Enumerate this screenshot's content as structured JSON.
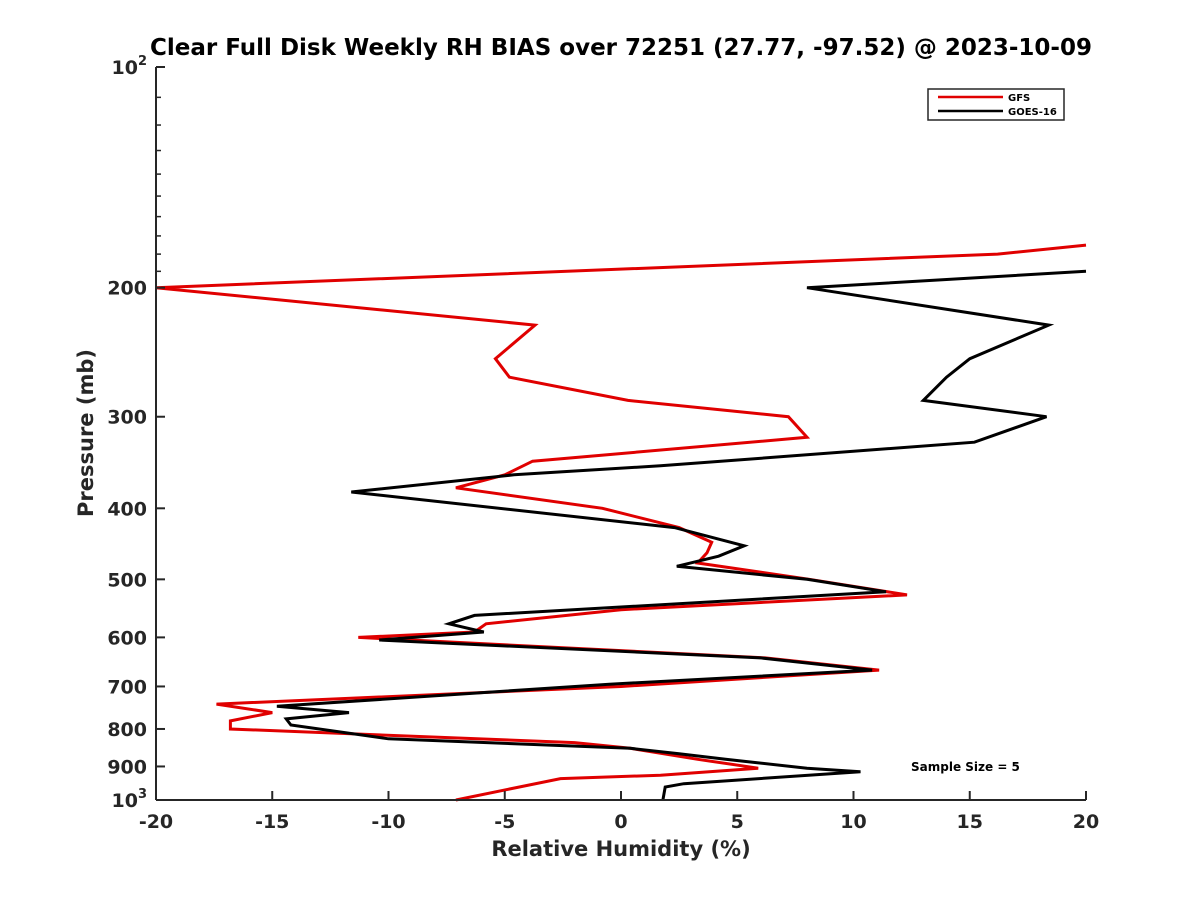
{
  "chart_data": {
    "type": "line",
    "title": "Clear Full Disk Weekly RH BIAS over 72251 (27.77, -97.52) @ 2023-10-09",
    "xlabel": "Relative Humidity (%)",
    "ylabel": "Pressure (mb)",
    "xlim": [
      -20,
      20
    ],
    "ylim": [
      100,
      1000
    ],
    "y_scale": "log",
    "y_reversed": true,
    "x_ticks": [
      "-20",
      "-15",
      "-10",
      "-5",
      "0",
      "5",
      "10",
      "15",
      "20"
    ],
    "y_ticks": [
      {
        "value": 100,
        "label": "10",
        "sup": "2"
      },
      {
        "value": 200,
        "label": "200",
        "sup": ""
      },
      {
        "value": 300,
        "label": "300",
        "sup": ""
      },
      {
        "value": 400,
        "label": "400",
        "sup": ""
      },
      {
        "value": 500,
        "label": "500",
        "sup": ""
      },
      {
        "value": 600,
        "label": "600",
        "sup": ""
      },
      {
        "value": 700,
        "label": "700",
        "sup": ""
      },
      {
        "value": 800,
        "label": "800",
        "sup": ""
      },
      {
        "value": 900,
        "label": "900",
        "sup": ""
      },
      {
        "value": 1000,
        "label": "10",
        "sup": "3"
      }
    ],
    "grid": false,
    "legend_position": "top-right",
    "annotation": "Sample Size = 5",
    "series": [
      {
        "name": "GFS",
        "color": "#e00000",
        "points": [
          [
            20.0,
            175
          ],
          [
            16.2,
            180
          ],
          [
            -20.0,
            200
          ],
          [
            -3.7,
            225
          ],
          [
            -5.4,
            250
          ],
          [
            -4.8,
            265
          ],
          [
            0.3,
            285
          ],
          [
            7.2,
            300
          ],
          [
            8.0,
            320
          ],
          [
            -3.8,
            345
          ],
          [
            -5.0,
            360
          ],
          [
            -7.1,
            375
          ],
          [
            -0.8,
            400
          ],
          [
            2.5,
            425
          ],
          [
            3.9,
            445
          ],
          [
            3.7,
            460
          ],
          [
            3.3,
            475
          ],
          [
            8.1,
            500
          ],
          [
            12.3,
            525
          ],
          [
            0.0,
            550
          ],
          [
            -5.8,
            575
          ],
          [
            -6.3,
            590
          ],
          [
            -11.3,
            600
          ],
          [
            6.2,
            640
          ],
          [
            11.1,
            665
          ],
          [
            0.0,
            700
          ],
          [
            -17.4,
            740
          ],
          [
            -15.0,
            760
          ],
          [
            -16.8,
            780
          ],
          [
            -16.8,
            800
          ],
          [
            -2.0,
            835
          ],
          [
            0.4,
            850
          ],
          [
            3.3,
            880
          ],
          [
            5.9,
            905
          ],
          [
            1.7,
            925
          ],
          [
            -2.6,
            935
          ],
          [
            -7.1,
            1000
          ]
        ]
      },
      {
        "name": "GOES-16",
        "color": "#000000",
        "points": [
          [
            20.0,
            190
          ],
          [
            8.0,
            200
          ],
          [
            18.4,
            225
          ],
          [
            15.0,
            250
          ],
          [
            14.0,
            265
          ],
          [
            13.0,
            285
          ],
          [
            18.3,
            300
          ],
          [
            15.2,
            325
          ],
          [
            1.7,
            350
          ],
          [
            -4.6,
            360
          ],
          [
            -11.6,
            380
          ],
          [
            2.3,
            425
          ],
          [
            5.3,
            450
          ],
          [
            4.2,
            465
          ],
          [
            2.4,
            480
          ],
          [
            8.0,
            500
          ],
          [
            11.4,
            520
          ],
          [
            -6.3,
            560
          ],
          [
            -7.4,
            575
          ],
          [
            -5.9,
            590
          ],
          [
            -10.4,
            605
          ],
          [
            6.0,
            640
          ],
          [
            10.8,
            665
          ],
          [
            -0.5,
            695
          ],
          [
            -14.8,
            745
          ],
          [
            -11.7,
            760
          ],
          [
            -14.4,
            775
          ],
          [
            -14.2,
            790
          ],
          [
            -10.0,
            825
          ],
          [
            0.4,
            850
          ],
          [
            2.5,
            865
          ],
          [
            4.5,
            880
          ],
          [
            8.0,
            905
          ],
          [
            10.3,
            915
          ],
          [
            2.7,
            950
          ],
          [
            1.9,
            960
          ],
          [
            1.8,
            1000
          ]
        ]
      }
    ]
  }
}
